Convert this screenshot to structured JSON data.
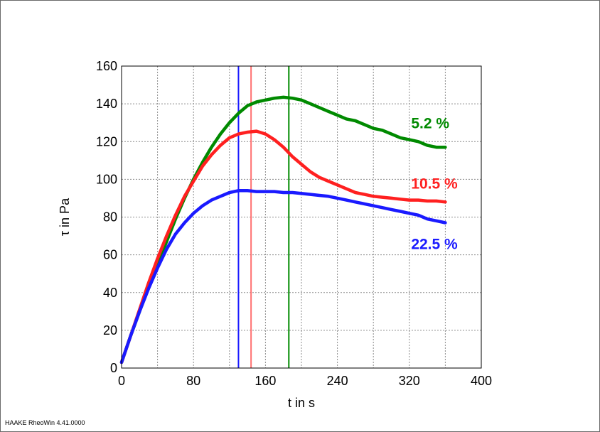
{
  "footer": "HAAKE RheoWin 4.41.0000",
  "chart_data": {
    "type": "line",
    "xlabel": "t in s",
    "ylabel": "τ in Pa",
    "xlim": [
      0,
      400
    ],
    "ylim": [
      0,
      160
    ],
    "xticks": [
      0,
      80,
      160,
      240,
      320,
      400
    ],
    "yticks": [
      0,
      20,
      40,
      60,
      80,
      100,
      120,
      140,
      160
    ],
    "grid": true,
    "series": [
      {
        "name": "5.2 %",
        "color": "#008a00",
        "x": [
          0,
          10,
          20,
          30,
          40,
          50,
          60,
          70,
          80,
          90,
          100,
          110,
          120,
          130,
          140,
          150,
          160,
          170,
          180,
          190,
          200,
          210,
          220,
          230,
          240,
          250,
          260,
          270,
          280,
          290,
          300,
          310,
          320,
          330,
          340,
          350,
          360
        ],
        "y": [
          3,
          17,
          30,
          43,
          55,
          67,
          79,
          90,
          100,
          109,
          117,
          124,
          130,
          135,
          139,
          141,
          142,
          143,
          143.5,
          143,
          142,
          140,
          138,
          136,
          134,
          132,
          131,
          129,
          127,
          126,
          124,
          122,
          121,
          120,
          118,
          117,
          117
        ]
      },
      {
        "name": "10.5 %",
        "color": "#ff2020",
        "x": [
          0,
          10,
          20,
          30,
          40,
          50,
          60,
          70,
          80,
          90,
          100,
          110,
          120,
          130,
          140,
          150,
          160,
          170,
          180,
          190,
          200,
          210,
          220,
          230,
          240,
          250,
          260,
          270,
          280,
          290,
          300,
          310,
          320,
          330,
          340,
          350,
          360
        ],
        "y": [
          3,
          17,
          31,
          45,
          58,
          70,
          81,
          91,
          99,
          107,
          113,
          118,
          122,
          124,
          125,
          125.5,
          124,
          121,
          117,
          112,
          108,
          104,
          101,
          99,
          97,
          95,
          93,
          92,
          91,
          90.5,
          90,
          89.5,
          89,
          89,
          88.5,
          88.5,
          88
        ]
      },
      {
        "name": "22.5 %",
        "color": "#1a1aff",
        "x": [
          0,
          10,
          20,
          30,
          40,
          50,
          60,
          70,
          80,
          90,
          100,
          110,
          120,
          130,
          140,
          150,
          160,
          170,
          180,
          190,
          200,
          210,
          220,
          230,
          240,
          250,
          260,
          270,
          280,
          290,
          300,
          310,
          320,
          330,
          340,
          350,
          360
        ],
        "y": [
          3,
          17,
          30,
          42,
          53,
          63,
          71,
          77,
          82,
          86,
          89,
          91,
          93,
          94,
          94,
          93.5,
          93.5,
          93.5,
          93,
          93,
          92.5,
          92,
          91.5,
          91,
          90,
          89,
          88,
          87,
          86,
          85,
          84,
          83,
          82,
          81,
          79,
          78,
          77
        ]
      }
    ],
    "vertical_markers": [
      {
        "x": 130,
        "color": "#1a1aff"
      },
      {
        "x": 144,
        "color": "#ff7070"
      },
      {
        "x": 186,
        "color": "#008a00"
      }
    ],
    "annotations": [
      {
        "text": "5.2 %",
        "x": 322,
        "y": 130,
        "color": "#008a00"
      },
      {
        "text": "10.5 %",
        "x": 322,
        "y": 98,
        "color": "#ff2020"
      },
      {
        "text": "22.5 %",
        "x": 322,
        "y": 66,
        "color": "#1a1aff"
      }
    ]
  }
}
